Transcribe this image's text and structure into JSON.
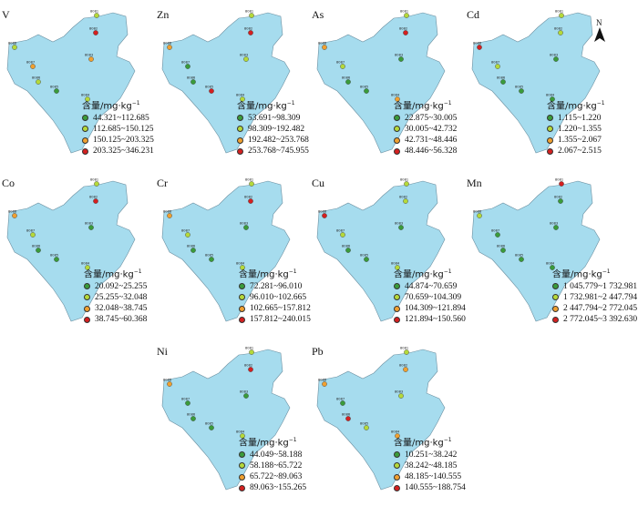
{
  "legend_title_main": "含量/mg·kg",
  "legend_title_exp": "−1",
  "north_label": "N",
  "class_colors": [
    "#3a9b3a",
    "#b5d93a",
    "#f0a030",
    "#d42020"
  ],
  "map_color": "#a6dcee",
  "site_labels": [
    "8081",
    "8082",
    "8083",
    "8084",
    "8085",
    "8086",
    "8087",
    "8088"
  ],
  "panels": [
    {
      "element": "V",
      "ranges": [
        "44.321~112.685",
        "112.685~150.125",
        "150.125~203.325",
        "203.325~346.231"
      ],
      "site_classes": [
        1,
        3,
        2,
        1,
        0,
        1,
        2,
        1
      ]
    },
    {
      "element": "Zn",
      "ranges": [
        "53.691~98.309",
        "98.309~192.482",
        "192.482~253.768",
        "253.768~745.955"
      ],
      "site_classes": [
        1,
        3,
        1,
        1,
        3,
        0,
        0,
        2
      ]
    },
    {
      "element": "As",
      "ranges": [
        "22.875~30.005",
        "30.005~42.732",
        "42.731~48.446",
        "48.446~56.328"
      ],
      "site_classes": [
        1,
        3,
        0,
        2,
        0,
        0,
        1,
        2
      ]
    },
    {
      "element": "Cd",
      "ranges": [
        "1.115~1.220",
        "1.220~1.355",
        "1.355~2.067",
        "2.067~2.515"
      ],
      "site_classes": [
        1,
        1,
        0,
        0,
        0,
        0,
        1,
        3
      ]
    },
    {
      "element": "Co",
      "ranges": [
        "20.092~25.255",
        "25.255~32.048",
        "32.048~38.745",
        "38.745~60.368"
      ],
      "site_classes": [
        1,
        3,
        0,
        1,
        0,
        0,
        1,
        2
      ]
    },
    {
      "element": "Cr",
      "ranges": [
        "72.281~96.010",
        "96.010~102.665",
        "102.665~157.812",
        "157.812~240.015"
      ],
      "site_classes": [
        1,
        3,
        0,
        1,
        0,
        0,
        1,
        2
      ]
    },
    {
      "element": "Cu",
      "ranges": [
        "44.874~70.659",
        "70.659~104.309",
        "104.309~121.894",
        "121.894~150.560"
      ],
      "site_classes": [
        1,
        1,
        0,
        1,
        0,
        0,
        1,
        3
      ]
    },
    {
      "element": "Mn",
      "ranges": [
        "1 045.779~1 732.981",
        "1 732.981~2 447.794",
        "2 447.794~2 772.045",
        "2 772.045~3 392.630"
      ],
      "site_classes": [
        3,
        0,
        0,
        0,
        0,
        0,
        0,
        1
      ]
    },
    {
      "element": "Ni",
      "ranges": [
        "44.049~58.188",
        "58.188~65.722",
        "65.722~89.063",
        "89.063~155.265"
      ],
      "site_classes": [
        1,
        3,
        0,
        1,
        0,
        0,
        0,
        2
      ]
    },
    {
      "element": "Pb",
      "ranges": [
        "10.251~38.242",
        "38.242~48.185",
        "48.185~140.555",
        "140.555~188.754"
      ],
      "site_classes": [
        1,
        2,
        1,
        2,
        1,
        3,
        0,
        2
      ]
    }
  ]
}
